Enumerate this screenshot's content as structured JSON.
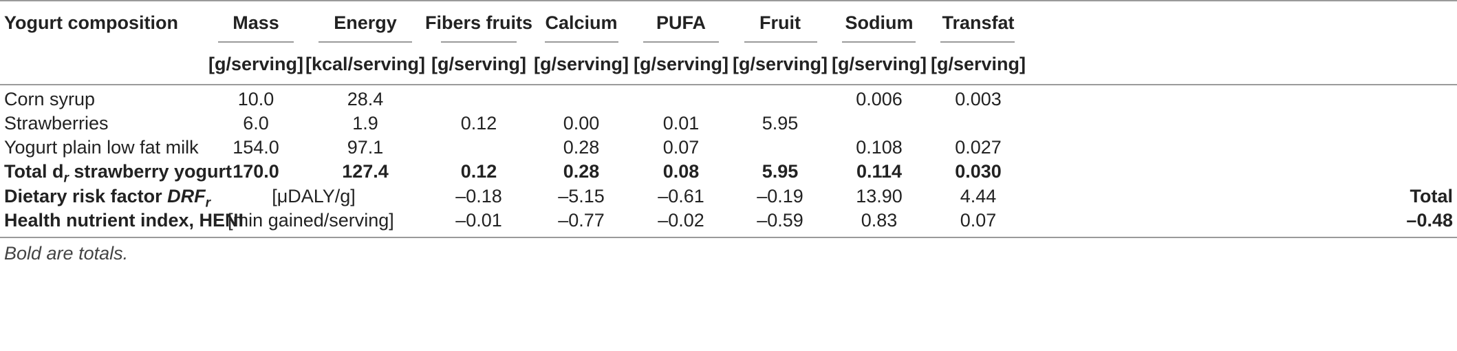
{
  "table": {
    "headers": [
      "Yogurt composition",
      "Mass",
      "Energy",
      "Fibers fruits",
      "Calcium",
      "PUFA",
      "Fruit",
      "Sodium",
      "Transfat"
    ],
    "units": [
      "[g/serving]",
      "[kcal/serving]",
      "[g/serving]",
      "[g/serving]",
      "[g/serving]",
      "[g/serving]",
      "[g/serving]",
      "[g/serving]"
    ],
    "rows": [
      {
        "label": "Corn syrup",
        "mass": "10.0",
        "energy": "28.4",
        "fibers": "",
        "calcium": "",
        "pufa": "",
        "fruit": "",
        "sodium": "0.006",
        "transfat": "0.003"
      },
      {
        "label": "Strawberries",
        "mass": "6.0",
        "energy": "1.9",
        "fibers": "0.12",
        "calcium": "0.00",
        "pufa": "0.01",
        "fruit": "5.95",
        "sodium": "",
        "transfat": ""
      },
      {
        "label": "Yogurt plain low fat milk",
        "mass": "154.0",
        "energy": "97.1",
        "fibers": "",
        "calcium": "0.28",
        "pufa": "0.07",
        "fruit": "",
        "sodium": "0.108",
        "transfat": "0.027"
      }
    ],
    "total_row": {
      "label_prefix": "Total d",
      "label_sub": "r",
      "label_suffix": " strawberry yogurt",
      "mass": "170.0",
      "energy": "127.4",
      "fibers": "0.12",
      "calcium": "0.28",
      "pufa": "0.08",
      "fruit": "5.95",
      "sodium": "0.114",
      "transfat": "0.030"
    },
    "drf_row": {
      "label_prefix": "Dietary risk factor ",
      "label_italic": "DRF",
      "label_sub": "r",
      "unit": "[μDALY/g]",
      "fibers": "–0.18",
      "calcium": "–5.15",
      "pufa": "–0.61",
      "fruit": "–0.19",
      "sodium": "13.90",
      "transfat": "4.44",
      "total_label": "Total"
    },
    "heni_row": {
      "label": "Health nutrient index, HENI",
      "unit": "[min gained/serving]",
      "fibers": "–0.01",
      "calcium": "–0.77",
      "pufa": "–0.02",
      "fruit": "–0.59",
      "sodium": "0.83",
      "transfat": "0.07",
      "total": "–0.48"
    }
  },
  "footnote": "Bold are totals."
}
